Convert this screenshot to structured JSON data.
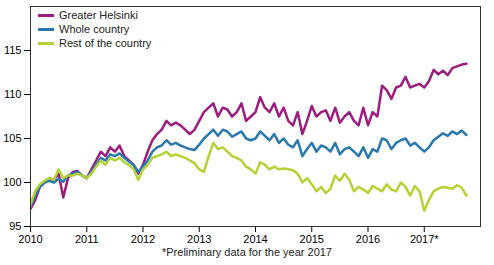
{
  "chart_data": {
    "type": "line",
    "caption": "*Preliminary data for the year 2017",
    "x": [
      2010,
      2010.083,
      2010.167,
      2010.25,
      2010.333,
      2010.417,
      2010.5,
      2010.583,
      2010.667,
      2010.75,
      2010.833,
      2010.917,
      2011,
      2011.083,
      2011.167,
      2011.25,
      2011.333,
      2011.417,
      2011.5,
      2011.583,
      2011.667,
      2011.75,
      2011.833,
      2011.917,
      2012,
      2012.083,
      2012.167,
      2012.25,
      2012.333,
      2012.417,
      2012.5,
      2012.583,
      2012.667,
      2012.75,
      2012.833,
      2012.917,
      2013,
      2013.083,
      2013.167,
      2013.25,
      2013.333,
      2013.417,
      2013.5,
      2013.583,
      2013.667,
      2013.75,
      2013.833,
      2013.917,
      2014,
      2014.083,
      2014.167,
      2014.25,
      2014.333,
      2014.417,
      2014.5,
      2014.583,
      2014.667,
      2014.75,
      2014.833,
      2014.917,
      2015,
      2015.083,
      2015.167,
      2015.25,
      2015.333,
      2015.417,
      2015.5,
      2015.583,
      2015.667,
      2015.75,
      2015.833,
      2015.917,
      2016,
      2016.083,
      2016.167,
      2016.25,
      2016.333,
      2016.417,
      2016.5,
      2016.583,
      2016.667,
      2016.75,
      2016.833,
      2016.917,
      2017,
      2017.083,
      2017.167,
      2017.25,
      2017.333,
      2017.417,
      2017.5,
      2017.583,
      2017.667,
      2017.75
    ],
    "series": [
      {
        "name": "Greater Helsinki",
        "color": "#9c1c80",
        "values": [
          97.0,
          98.0,
          99.5,
          100.0,
          100.5,
          100.3,
          101.0,
          98.3,
          100.5,
          101.2,
          101.3,
          100.8,
          100.5,
          101.5,
          102.5,
          103.5,
          103.0,
          104.0,
          103.5,
          104.2,
          103.0,
          102.5,
          102.0,
          101.0,
          102.0,
          103.5,
          104.8,
          105.5,
          106.0,
          107.0,
          106.5,
          106.8,
          106.5,
          106.0,
          105.5,
          106.0,
          107.0,
          108.0,
          108.5,
          109.0,
          107.5,
          108.5,
          108.3,
          107.5,
          108.0,
          109.0,
          107.0,
          107.5,
          108.0,
          109.7,
          108.5,
          108.0,
          109.0,
          107.5,
          108.5,
          107.0,
          106.5,
          108.0,
          105.5,
          107.0,
          108.7,
          107.5,
          108.0,
          108.2,
          107.0,
          108.5,
          106.8,
          107.5,
          108.0,
          107.0,
          106.5,
          108.5,
          106.5,
          108.0,
          107.5,
          111.0,
          110.5,
          109.5,
          110.8,
          111.0,
          112.0,
          110.8,
          111.0,
          111.2,
          110.8,
          111.5,
          112.8,
          112.3,
          112.7,
          112.2,
          113.0,
          113.2,
          113.4,
          113.5
        ]
      },
      {
        "name": "Whole country",
        "color": "#2a78b0",
        "values": [
          97.2,
          98.5,
          99.5,
          100.0,
          100.2,
          100.0,
          100.4,
          100.1,
          100.8,
          101.0,
          101.2,
          100.8,
          100.5,
          101.2,
          102.0,
          102.8,
          102.5,
          103.2,
          103.0,
          103.3,
          102.8,
          102.4,
          102.0,
          101.2,
          101.8,
          102.5,
          103.5,
          104.0,
          104.2,
          104.8,
          104.3,
          104.5,
          104.2,
          104.0,
          103.8,
          103.7,
          104.3,
          105.0,
          105.5,
          106.0,
          105.3,
          106.0,
          105.8,
          105.2,
          105.5,
          105.8,
          105.0,
          104.8,
          105.0,
          105.8,
          105.3,
          104.8,
          105.5,
          104.5,
          105.0,
          104.3,
          104.0,
          104.8,
          103.0,
          103.8,
          104.5,
          103.5,
          104.2,
          104.0,
          103.5,
          104.5,
          103.2,
          103.8,
          104.0,
          103.5,
          103.0,
          104.0,
          102.8,
          103.8,
          103.5,
          105.0,
          104.8,
          103.8,
          104.5,
          104.8,
          105.0,
          104.2,
          104.5,
          104.0,
          103.5,
          104.0,
          104.8,
          105.2,
          105.6,
          105.3,
          105.8,
          105.5,
          105.9,
          105.4
        ]
      },
      {
        "name": "Rest of the country",
        "color": "#b3d235",
        "values": [
          97.5,
          99.0,
          99.8,
          100.2,
          100.5,
          100.3,
          101.5,
          100.5,
          100.8,
          100.8,
          101.0,
          100.8,
          100.5,
          101.0,
          101.8,
          102.5,
          102.0,
          102.8,
          102.5,
          102.8,
          102.3,
          102.0,
          101.5,
          100.3,
          101.5,
          102.0,
          102.8,
          103.0,
          103.2,
          103.5,
          103.0,
          103.2,
          103.0,
          102.8,
          102.5,
          102.2,
          101.5,
          101.2,
          103.0,
          104.5,
          103.8,
          104.0,
          103.5,
          103.0,
          102.8,
          102.5,
          101.8,
          101.5,
          101.0,
          102.3,
          102.0,
          101.5,
          101.8,
          101.5,
          101.6,
          101.5,
          101.4,
          101.0,
          100.0,
          100.5,
          99.8,
          99.0,
          99.5,
          98.8,
          99.3,
          100.8,
          100.2,
          101.0,
          100.3,
          99.0,
          99.5,
          99.2,
          98.8,
          99.6,
          99.3,
          99.0,
          99.8,
          99.2,
          99.0,
          100.0,
          99.5,
          98.5,
          99.6,
          99.0,
          96.8,
          98.0,
          99.0,
          99.3,
          99.5,
          99.4,
          99.3,
          99.7,
          99.4,
          98.5
        ]
      }
    ],
    "xlim": [
      2010,
      2018
    ],
    "xticks": [
      {
        "value": 2010,
        "label": "2010"
      },
      {
        "value": 2011,
        "label": "2011"
      },
      {
        "value": 2012,
        "label": "2012"
      },
      {
        "value": 2013,
        "label": "2013"
      },
      {
        "value": 2014,
        "label": "2014"
      },
      {
        "value": 2015,
        "label": "2015"
      },
      {
        "value": 2016,
        "label": "2016"
      },
      {
        "value": 2017,
        "label": "2017*"
      }
    ],
    "ylim": [
      95,
      120
    ],
    "yticks": [
      95,
      100,
      105,
      110,
      115
    ],
    "grid": false,
    "legend": "top-left"
  }
}
